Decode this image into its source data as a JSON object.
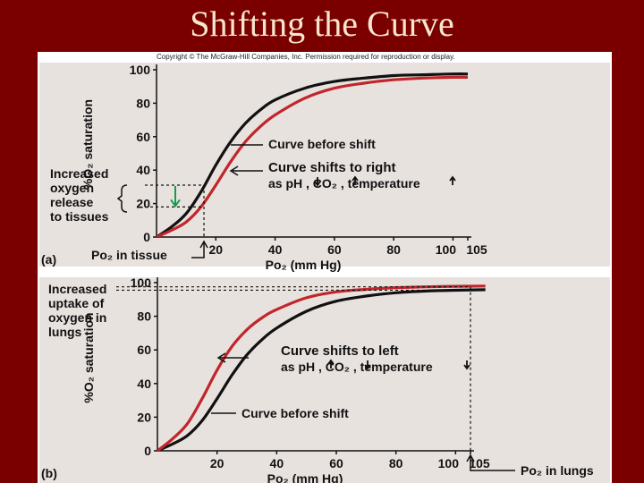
{
  "slide": {
    "title": "Shifting the Curve",
    "copyright": "Copyright © The McGraw-Hill Companies, Inc. Permission required for reproduction or display."
  },
  "colors": {
    "slide_background": "#7a0000",
    "title_text": "#f6e6cf",
    "panel_background": "#e8e2df",
    "curve_before_shift": "#111111",
    "curve_shifted": "#c0262b",
    "indicator_arrow": "#1a9b4a"
  },
  "chart_data": [
    {
      "type": "line",
      "panel_label": "(a)",
      "xlabel": "Po₂ (mm Hg)",
      "ylabel": "%O₂ saturation",
      "xlim": [
        0,
        105
      ],
      "ylim": [
        0,
        100
      ],
      "x_ticks": [
        20,
        40,
        60,
        80,
        100,
        105
      ],
      "y_ticks": [
        0,
        20,
        40,
        60,
        80,
        100
      ],
      "series": [
        {
          "name": "Curve before shift",
          "color": "#111111",
          "x": [
            0,
            5,
            10,
            15,
            20,
            25,
            30,
            35,
            40,
            50,
            60,
            70,
            80,
            90,
            100,
            105
          ],
          "y": [
            0,
            6,
            14,
            27,
            43,
            57,
            68,
            76,
            82,
            89,
            93,
            95,
            96.5,
            97,
            97.5,
            97.5
          ]
        },
        {
          "name": "Curve shifts to right",
          "color": "#c0262b",
          "x": [
            0,
            5,
            10,
            15,
            20,
            25,
            30,
            35,
            40,
            50,
            60,
            70,
            80,
            90,
            100,
            105
          ],
          "y": [
            0,
            4,
            9,
            18,
            31,
            45,
            57,
            66,
            73,
            83,
            89,
            92,
            94,
            95,
            95.5,
            95.5
          ]
        }
      ],
      "annotations": {
        "before_label": "Curve before shift",
        "shift_label_line1": "Curve shifts to right",
        "shift_label_line2": "as pH , CO₂ , temperature",
        "release_label": [
          "Increased",
          "oxygen",
          "release",
          "to tissues"
        ],
        "tissue_label": "Po₂ in tissue",
        "tissue_po2": 16,
        "release_from": 31,
        "release_to": 18
      }
    },
    {
      "type": "line",
      "panel_label": "(b)",
      "xlabel": "Po₂ (mm Hg)",
      "ylabel": "%O₂ saturation",
      "xlim": [
        0,
        105
      ],
      "ylim": [
        0,
        100
      ],
      "x_ticks": [
        20,
        40,
        60,
        80,
        100,
        105
      ],
      "y_ticks": [
        0,
        20,
        40,
        60,
        80,
        100
      ],
      "series": [
        {
          "name": "Curve before shift",
          "color": "#111111",
          "x": [
            0,
            5,
            10,
            15,
            20,
            25,
            30,
            35,
            40,
            50,
            60,
            70,
            80,
            90,
            100,
            110
          ],
          "y": [
            0,
            4,
            9,
            18,
            31,
            45,
            57,
            66,
            73,
            83,
            89,
            92,
            94,
            95,
            95.5,
            95.8
          ]
        },
        {
          "name": "Curve shifts to left",
          "color": "#c0262b",
          "x": [
            0,
            5,
            10,
            15,
            20,
            25,
            30,
            35,
            40,
            50,
            60,
            70,
            80,
            90,
            100,
            110
          ],
          "y": [
            0,
            7,
            16,
            31,
            48,
            62,
            72,
            79,
            84,
            91,
            94.5,
            96,
            97,
            97.5,
            97.8,
            98
          ]
        }
      ],
      "annotations": {
        "before_label": "Curve before shift",
        "shift_label_line1": "Curve shifts to left",
        "shift_label_line2": "as pH , CO₂ , temperature",
        "uptake_label": [
          "Increased",
          "uptake of",
          "oxygen in",
          "lungs"
        ],
        "lungs_label": "Po₂ in lungs",
        "lungs_po2": 105
      }
    }
  ]
}
